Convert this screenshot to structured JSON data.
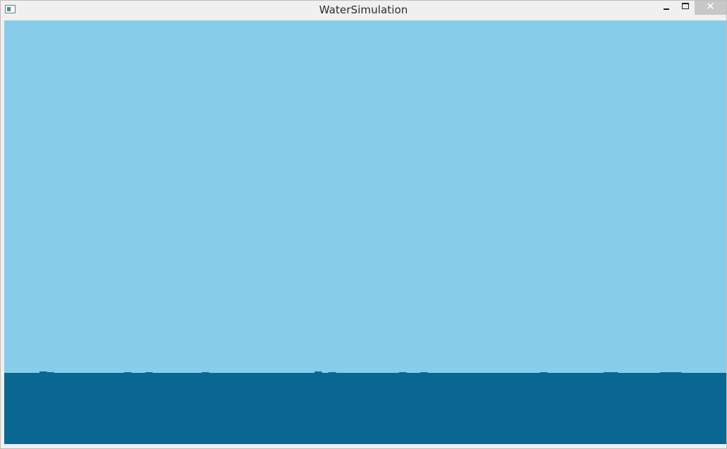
{
  "window": {
    "title": "WaterSimulation"
  },
  "controls": {
    "minimize_icon": "minimize-icon",
    "maximize_icon": "maximize-icon",
    "close_icon": "close-icon",
    "close_glyph": "✕"
  },
  "colors": {
    "sky": "#87cde9",
    "water": "#0a6792"
  }
}
